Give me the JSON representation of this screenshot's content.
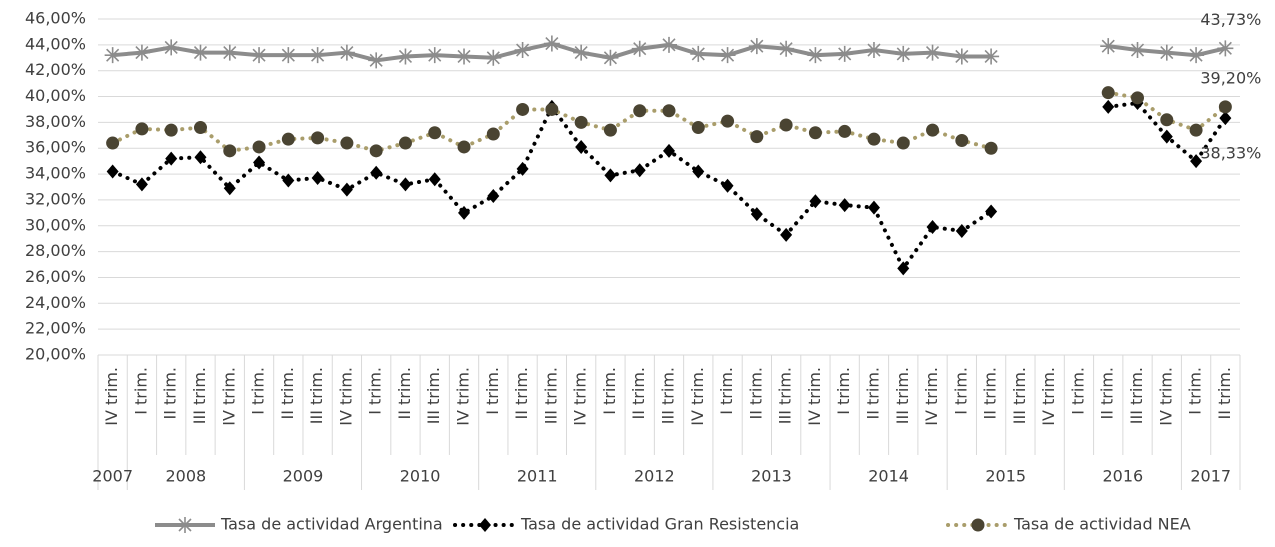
{
  "chart_data": {
    "type": "line",
    "categories": [
      "IV trim.",
      "I trim.",
      "II trim.",
      "III trim.",
      "IV trim.",
      "I trim.",
      "II trim.",
      "III trim.",
      "IV trim.",
      "I trim.",
      "II trim.",
      "III trim.",
      "IV trim.",
      "I trim.",
      "II trim.",
      "III trim.",
      "IV trim.",
      "I trim.",
      "II trim.",
      "III trim.",
      "IV trim.",
      "I trim.",
      "II trim.",
      "III trim.",
      "IV trim.",
      "I trim.",
      "II trim.",
      "III trim.",
      "IV trim.",
      "I trim.",
      "II trim.",
      "III trim.",
      "IV trim.",
      "I trim.",
      "II trim.",
      "III trim.",
      "IV trim.",
      "I trim.",
      "II trim."
    ],
    "years": [
      "2007",
      "2008",
      null,
      null,
      null,
      "2009",
      null,
      null,
      null,
      "2010",
      null,
      null,
      null,
      "2011",
      null,
      null,
      null,
      "2012",
      null,
      null,
      null,
      "2013",
      null,
      null,
      null,
      "2014",
      null,
      null,
      null,
      "2015",
      null,
      null,
      null,
      "2016",
      null,
      null,
      null,
      "2017",
      null
    ],
    "series": [
      {
        "name": "Tasa de actividad Argentina",
        "color": "#8c8c8c",
        "marker": "star",
        "marker_color": "#8c8c8c",
        "dashed": false,
        "values": [
          43.2,
          43.4,
          43.8,
          43.4,
          43.4,
          43.2,
          43.2,
          43.2,
          43.4,
          42.8,
          43.1,
          43.2,
          43.1,
          43.0,
          43.6,
          44.1,
          43.4,
          43.0,
          43.7,
          44.0,
          43.3,
          43.2,
          43.9,
          43.7,
          43.2,
          43.3,
          43.6,
          43.3,
          43.4,
          43.1,
          43.1,
          null,
          null,
          null,
          43.9,
          43.6,
          43.4,
          43.2,
          43.73
        ],
        "value_labels": [
          null,
          null,
          null,
          null,
          null,
          null,
          null,
          null,
          null,
          null,
          null,
          null,
          null,
          null,
          null,
          null,
          null,
          null,
          null,
          null,
          null,
          null,
          null,
          null,
          null,
          null,
          null,
          null,
          null,
          null,
          null,
          null,
          null,
          null,
          null,
          null,
          null,
          null,
          "43,73%"
        ]
      },
      {
        "name": "Tasa de actividad Gran Resistencia",
        "color": "#000000",
        "marker": "diamond",
        "marker_color": "#000000",
        "dashed": true,
        "values": [
          34.2,
          33.2,
          35.2,
          35.3,
          32.9,
          34.9,
          33.5,
          33.7,
          32.8,
          34.1,
          33.2,
          33.6,
          31.0,
          32.3,
          34.4,
          39.2,
          36.1,
          33.9,
          34.3,
          35.8,
          34.2,
          33.1,
          30.9,
          29.3,
          31.9,
          31.6,
          31.4,
          26.7,
          29.9,
          29.6,
          31.1,
          null,
          null,
          null,
          39.2,
          39.5,
          36.9,
          35.0,
          38.33
        ],
        "value_labels": [
          null,
          null,
          null,
          null,
          null,
          null,
          null,
          null,
          null,
          null,
          null,
          null,
          null,
          null,
          null,
          null,
          null,
          null,
          null,
          null,
          null,
          null,
          null,
          null,
          null,
          null,
          null,
          null,
          null,
          null,
          null,
          null,
          null,
          null,
          null,
          null,
          null,
          null,
          "38,33%"
        ]
      },
      {
        "name": "Tasa de actividad NEA",
        "color": "#a99d6b",
        "marker": "circle",
        "marker_color": "#4a4432",
        "dashed": true,
        "values": [
          36.4,
          37.5,
          37.4,
          37.6,
          35.8,
          36.1,
          36.7,
          36.8,
          36.4,
          35.8,
          36.4,
          37.2,
          36.1,
          37.1,
          39.0,
          39.0,
          38.0,
          37.4,
          38.9,
          38.9,
          37.6,
          38.1,
          36.9,
          37.8,
          37.2,
          37.3,
          36.7,
          36.4,
          37.4,
          36.6,
          36.0,
          null,
          null,
          null,
          40.3,
          39.9,
          38.2,
          37.4,
          39.2
        ],
        "value_labels": [
          null,
          null,
          null,
          null,
          null,
          null,
          null,
          null,
          null,
          null,
          null,
          null,
          null,
          null,
          null,
          null,
          null,
          null,
          null,
          null,
          null,
          null,
          null,
          null,
          null,
          null,
          null,
          null,
          null,
          null,
          null,
          null,
          null,
          null,
          null,
          null,
          null,
          null,
          "39,20%"
        ]
      }
    ],
    "ylim": [
      20,
      46
    ],
    "yticks": [
      {
        "value": 20,
        "label": "20,00%"
      },
      {
        "value": 22,
        "label": "22,00%"
      },
      {
        "value": 24,
        "label": "24,00%"
      },
      {
        "value": 26,
        "label": "26,00%"
      },
      {
        "value": 28,
        "label": "28,00%"
      },
      {
        "value": 30,
        "label": "30,00%"
      },
      {
        "value": 32,
        "label": "32,00%"
      },
      {
        "value": 34,
        "label": "34,00%"
      },
      {
        "value": 36,
        "label": "36,00%"
      },
      {
        "value": 38,
        "label": "38,00%"
      },
      {
        "value": 40,
        "label": "40,00%"
      },
      {
        "value": 42,
        "label": "42,00%"
      },
      {
        "value": 44,
        "label": "44,00%"
      },
      {
        "value": 46,
        "label": "46,00%"
      }
    ],
    "grid": true,
    "legend": "bottom"
  }
}
